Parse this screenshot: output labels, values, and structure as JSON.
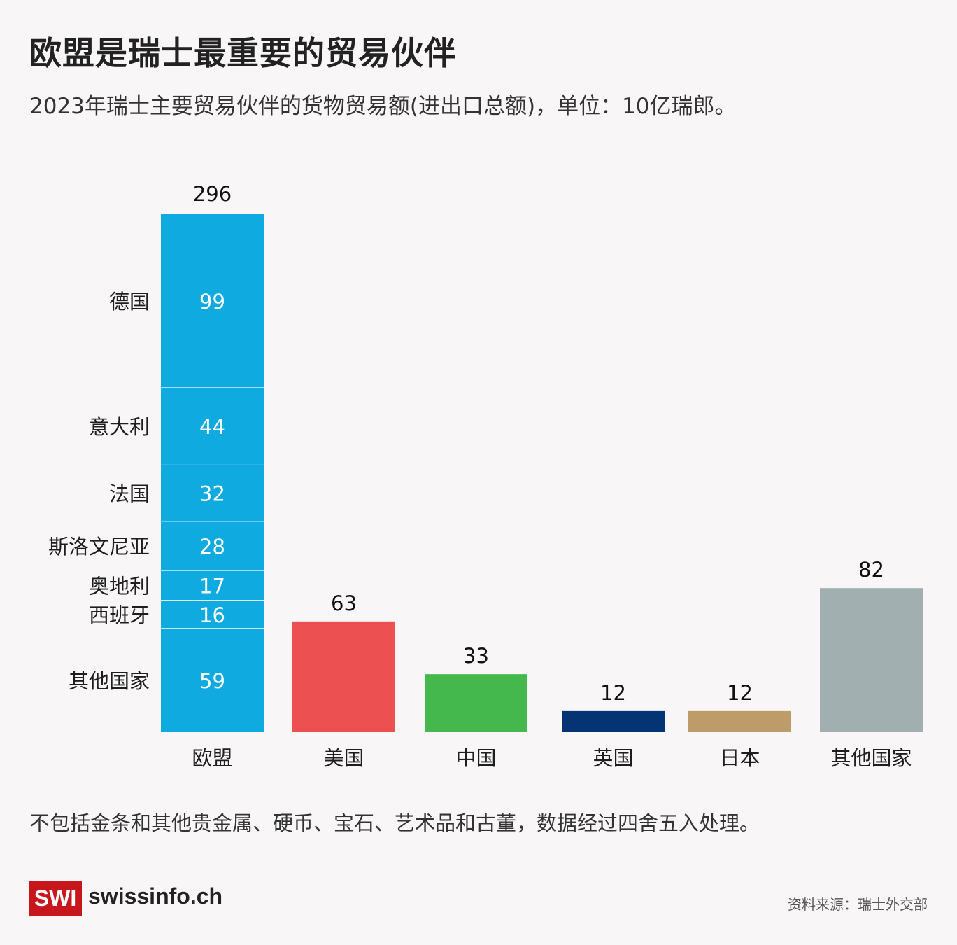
{
  "title": "欧盟是瑞士最重要的贸易伙伴",
  "subtitle": "2023年瑞士主要贸易伙伴的货物贸易额(进出口总额)，单位：10亿瑞郎。",
  "footnote": "不包括金条和其他贵金属、硬币、宝石、艺术品和古董，数据经过四舍五入处理。",
  "brand": {
    "logo": "SWI",
    "name": "swissinfo.ch"
  },
  "source": "资料来源：瑞士外交部",
  "chart_data": {
    "type": "bar",
    "categories": [
      "欧盟",
      "美国",
      "中国",
      "英国",
      "日本",
      "其他国家"
    ],
    "values": [
      296,
      63,
      33,
      12,
      12,
      82
    ],
    "colors": [
      "#0faae0",
      "#ec5050",
      "#44b84c",
      "#043474",
      "#be9c6a",
      "#a1afb1"
    ],
    "stack": {
      "category": "欧盟",
      "segments": [
        {
          "label": "德国",
          "value": 99
        },
        {
          "label": "意大利",
          "value": 44
        },
        {
          "label": "法国",
          "value": 32
        },
        {
          "label": "斯洛文尼亚",
          "value": 28
        },
        {
          "label": "奥地利",
          "value": 17
        },
        {
          "label": "西班牙",
          "value": 16
        },
        {
          "label": "其他国家",
          "value": 59
        }
      ]
    },
    "title": "欧盟是瑞士最重要的贸易伙伴",
    "ylabel": "",
    "ylim": [
      0,
      296
    ],
    "grid": false,
    "legend": "none"
  }
}
